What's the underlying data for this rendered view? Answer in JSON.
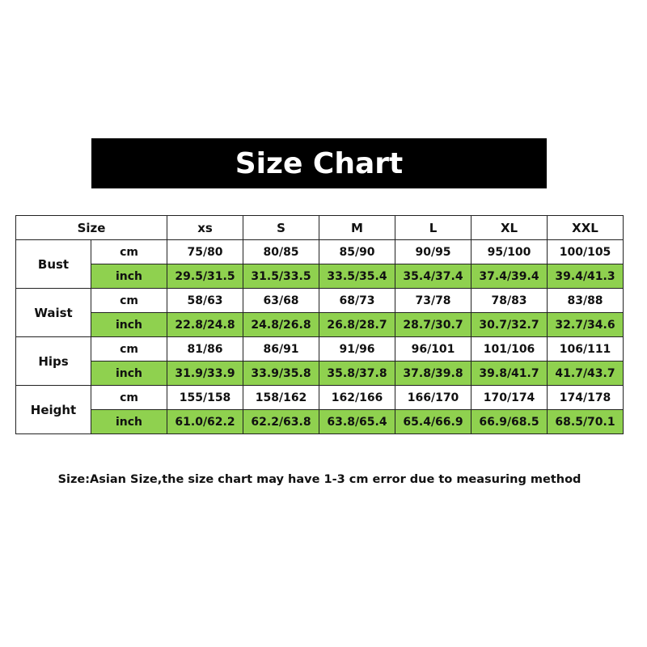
{
  "title": "Size Chart",
  "header": {
    "size_label": "Size",
    "sizes": [
      "xs",
      "S",
      "M",
      "L",
      "XL",
      "XXL"
    ]
  },
  "rows": [
    {
      "label": "Bust",
      "cm_label": "cm",
      "inch_label": "inch",
      "cm": [
        "75/80",
        "80/85",
        "85/90",
        "90/95",
        "95/100",
        "100/105"
      ],
      "inch": [
        "29.5/31.5",
        "31.5/33.5",
        "33.5/35.4",
        "35.4/37.4",
        "37.4/39.4",
        "39.4/41.3"
      ]
    },
    {
      "label": "Waist",
      "cm_label": "cm",
      "inch_label": "inch",
      "cm": [
        "58/63",
        "63/68",
        "68/73",
        "73/78",
        "78/83",
        "83/88"
      ],
      "inch": [
        "22.8/24.8",
        "24.8/26.8",
        "26.8/28.7",
        "28.7/30.7",
        "30.7/32.7",
        "32.7/34.6"
      ]
    },
    {
      "label": "Hips",
      "cm_label": "cm",
      "inch_label": "inch",
      "cm": [
        "81/86",
        "86/91",
        "91/96",
        "96/101",
        "101/106",
        "106/111"
      ],
      "inch": [
        "31.9/33.9",
        "33.9/35.8",
        "35.8/37.8",
        "37.8/39.8",
        "39.8/41.7",
        "41.7/43.7"
      ]
    },
    {
      "label": "Height",
      "cm_label": "cm",
      "inch_label": "inch",
      "cm": [
        "155/158",
        "158/162",
        "162/166",
        "166/170",
        "170/174",
        "174/178"
      ],
      "inch": [
        "61.0/62.2",
        "62.2/63.8",
        "63.8/65.4",
        "65.4/66.9",
        "66.9/68.5",
        "68.5/70.1"
      ]
    }
  ],
  "note": "Size:Asian Size,the size chart may have 1-3 cm error due to measuring method",
  "colors": {
    "inch_row_bg": "#8fd14f",
    "banner_bg": "#000000"
  }
}
